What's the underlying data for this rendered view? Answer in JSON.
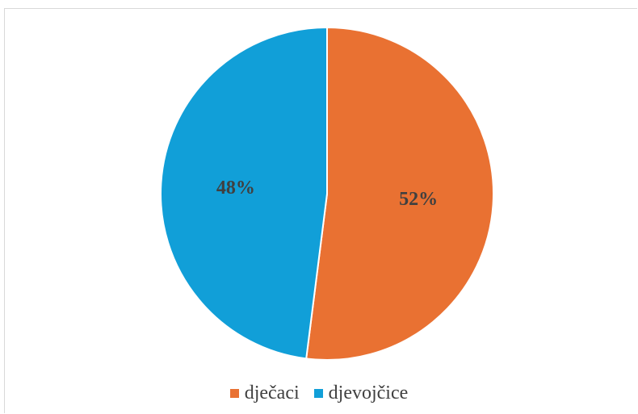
{
  "chart_data": {
    "type": "pie",
    "slices": [
      {
        "label": "dječaci",
        "value": 52,
        "value_label": "52%",
        "color": "#e97132"
      },
      {
        "label": "djevojčice",
        "value": 48,
        "value_label": "48%",
        "color": "#119fd8"
      }
    ],
    "legend_position": "bottom"
  }
}
